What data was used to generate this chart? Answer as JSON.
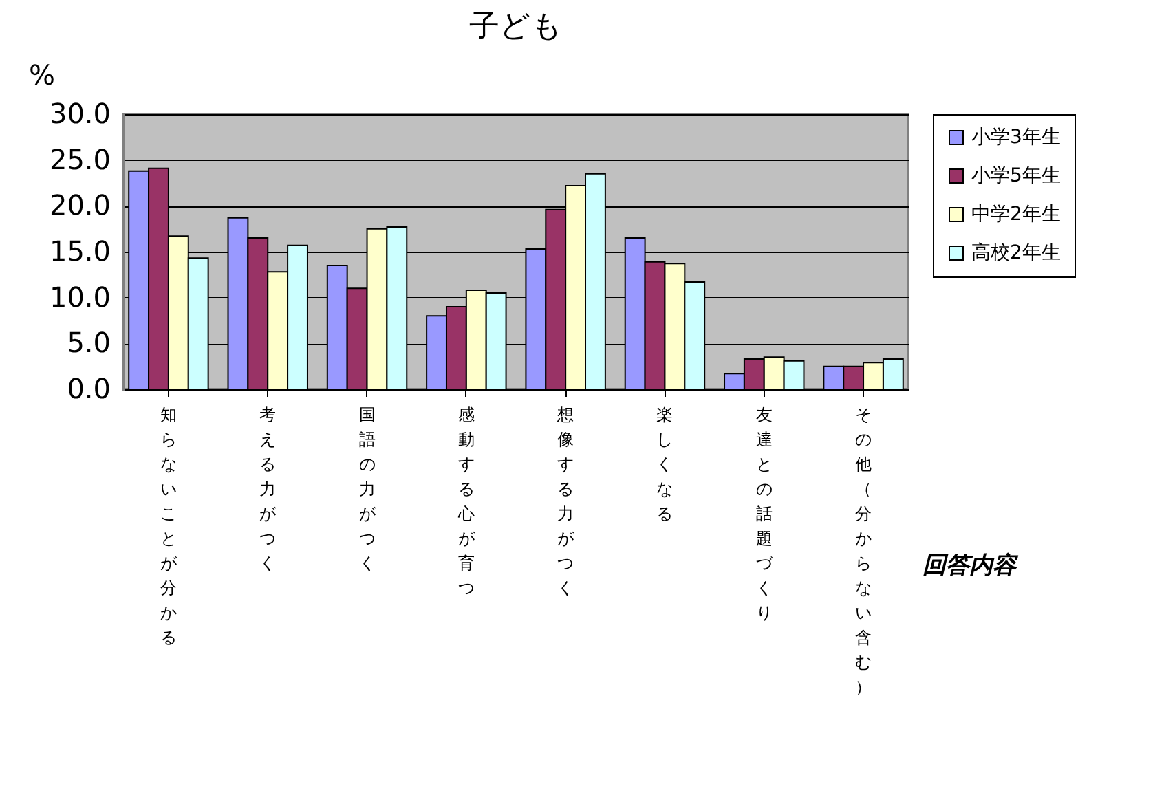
{
  "chart_data": {
    "type": "bar",
    "title": "子ども",
    "ylabel": "%",
    "xlabel": "回答内容",
    "categories": [
      "知らないことが分かる",
      "考える力がつく",
      "国語の力がつく",
      "感動する心が育つ",
      "想像する力がつく",
      "楽しくなる",
      "友達との話題づくり",
      "その他（分からない含む）"
    ],
    "series": [
      {
        "name": "小学3年生",
        "color": "#9999ff",
        "values": [
          23.8,
          18.7,
          13.5,
          8.0,
          15.3,
          16.5,
          1.7,
          2.5
        ]
      },
      {
        "name": "小学5年生",
        "color": "#993366",
        "values": [
          24.1,
          16.5,
          11.0,
          9.0,
          19.6,
          13.9,
          3.3,
          2.5
        ]
      },
      {
        "name": "中学2年生",
        "color": "#ffffcc",
        "values": [
          16.7,
          12.8,
          17.5,
          10.8,
          22.2,
          13.7,
          3.5,
          2.9
        ]
      },
      {
        "name": "高校2年生",
        "color": "#ccffff",
        "values": [
          14.3,
          15.7,
          17.7,
          10.5,
          23.5,
          11.7,
          3.1,
          3.3
        ]
      }
    ],
    "ylim": [
      0,
      30
    ],
    "yticks": [
      {
        "value": 0,
        "label": "0.0"
      },
      {
        "value": 5,
        "label": "5.0"
      },
      {
        "value": 10,
        "label": "10.0"
      },
      {
        "value": 15,
        "label": "15.0"
      },
      {
        "value": 20,
        "label": "20.0"
      },
      {
        "value": 25,
        "label": "25.0"
      },
      {
        "value": 30,
        "label": "30.0"
      }
    ],
    "grid": "y",
    "legend": "right"
  }
}
